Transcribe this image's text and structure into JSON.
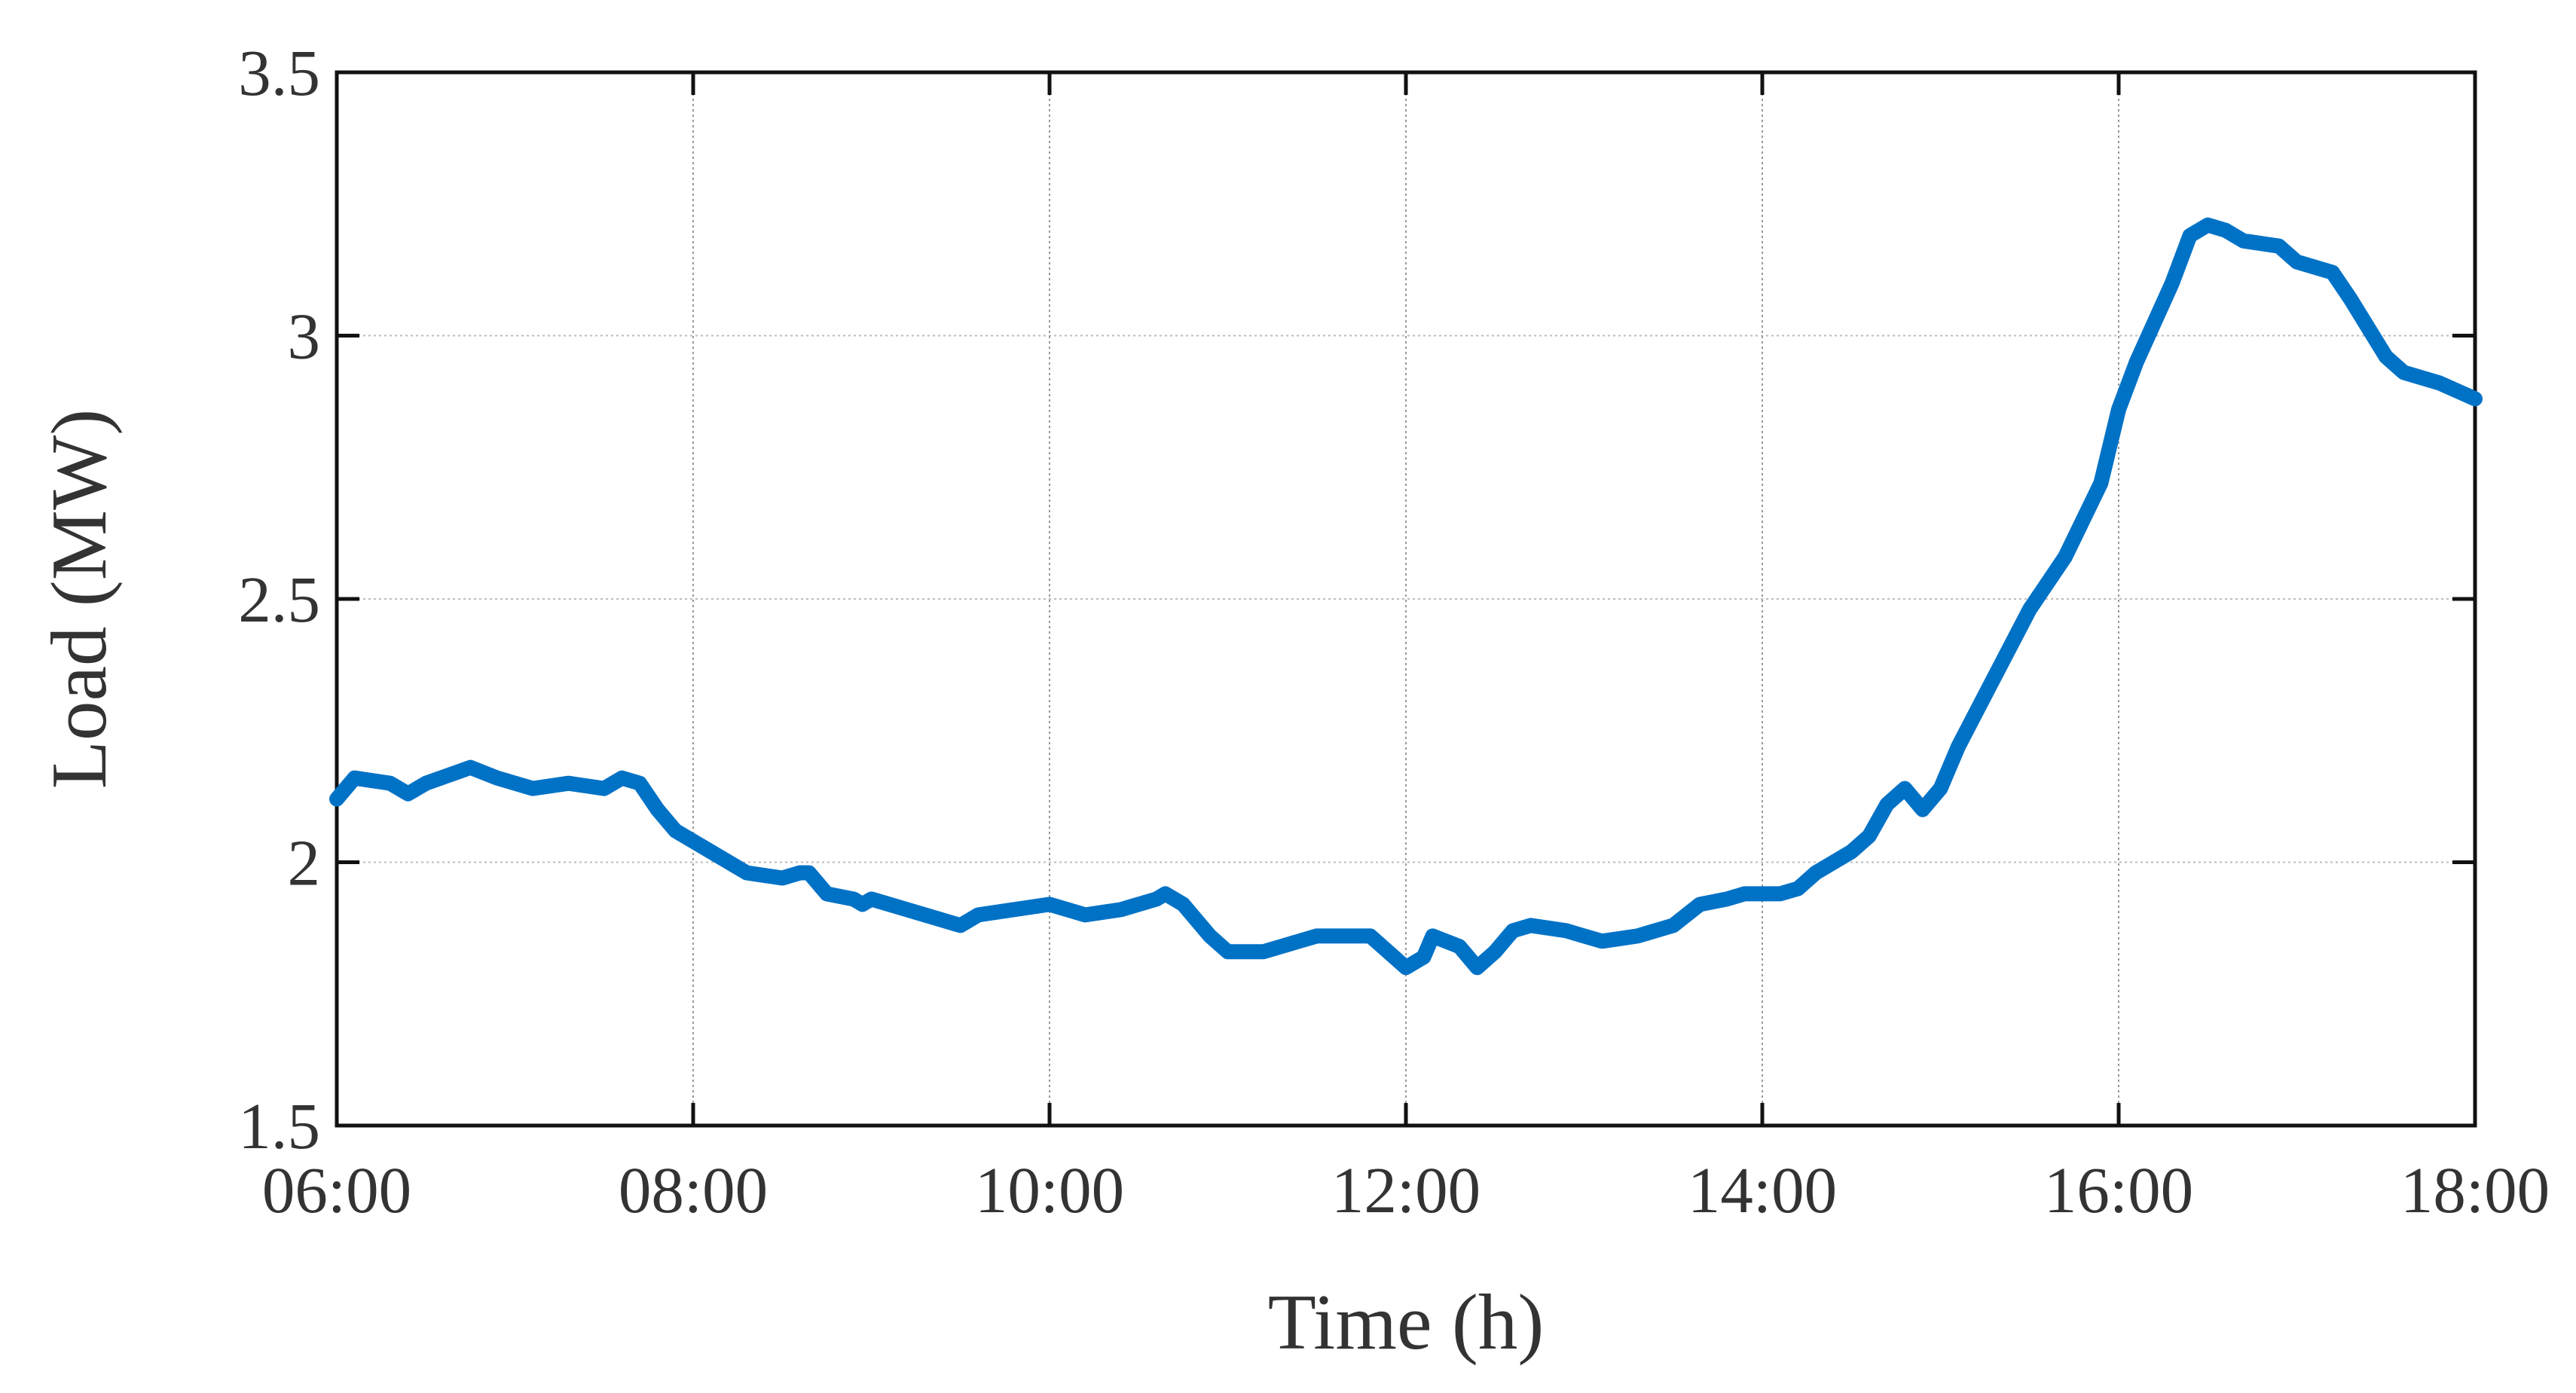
{
  "chart_data": {
    "type": "line",
    "xlabel": "Time (h)",
    "ylabel": "Load (MW)",
    "x": [
      6.0,
      6.1,
      6.3,
      6.4,
      6.5,
      6.75,
      6.9,
      7.1,
      7.3,
      7.5,
      7.6,
      7.7,
      7.8,
      7.9,
      8.1,
      8.3,
      8.5,
      8.6,
      8.65,
      8.75,
      8.9,
      8.95,
      9.0,
      9.2,
      9.4,
      9.5,
      9.6,
      9.8,
      10.0,
      10.2,
      10.4,
      10.6,
      10.65,
      10.75,
      10.9,
      11.0,
      11.2,
      11.4,
      11.5,
      11.7,
      11.8,
      12.0,
      12.1,
      12.15,
      12.3,
      12.4,
      12.5,
      12.6,
      12.7,
      12.9,
      13.0,
      13.1,
      13.3,
      13.5,
      13.65,
      13.8,
      13.9,
      14.1,
      14.2,
      14.3,
      14.5,
      14.6,
      14.7,
      14.8,
      14.9,
      15.0,
      15.1,
      15.3,
      15.5,
      15.7,
      15.9,
      16.0,
      16.1,
      16.3,
      16.4,
      16.5,
      16.6,
      16.7,
      16.9,
      17.0,
      17.2,
      17.3,
      17.5,
      17.6,
      17.8,
      18.0
    ],
    "series": [
      {
        "name": "Load",
        "color": "#0072c6",
        "values": [
          2.12,
          2.16,
          2.15,
          2.13,
          2.15,
          2.18,
          2.16,
          2.14,
          2.15,
          2.14,
          2.16,
          2.15,
          2.1,
          2.06,
          2.02,
          1.98,
          1.97,
          1.98,
          1.98,
          1.94,
          1.93,
          1.92,
          1.93,
          1.91,
          1.89,
          1.88,
          1.9,
          1.91,
          1.92,
          1.9,
          1.91,
          1.93,
          1.94,
          1.92,
          1.86,
          1.83,
          1.83,
          1.85,
          1.86,
          1.86,
          1.86,
          1.8,
          1.82,
          1.86,
          1.84,
          1.8,
          1.83,
          1.87,
          1.88,
          1.87,
          1.86,
          1.85,
          1.86,
          1.88,
          1.92,
          1.93,
          1.94,
          1.94,
          1.95,
          1.98,
          2.02,
          2.05,
          2.11,
          2.14,
          2.1,
          2.14,
          2.22,
          2.35,
          2.48,
          2.58,
          2.72,
          2.86,
          2.95,
          3.1,
          3.19,
          3.21,
          3.2,
          3.18,
          3.17,
          3.14,
          3.12,
          3.07,
          2.96,
          2.93,
          2.91,
          2.88
        ]
      }
    ],
    "xlim": [
      6,
      18
    ],
    "xticks": [
      {
        "value": 6,
        "label": "06:00"
      },
      {
        "value": 8,
        "label": "08:00"
      },
      {
        "value": 10,
        "label": "10:00"
      },
      {
        "value": 12,
        "label": "12:00"
      },
      {
        "value": 14,
        "label": "14:00"
      },
      {
        "value": 16,
        "label": "16:00"
      },
      {
        "value": 18,
        "label": "18:00"
      }
    ],
    "ylim": [
      1.5,
      3.5
    ],
    "yticks": [
      1.5,
      2,
      2.5,
      3,
      3.5
    ],
    "grid": true
  }
}
